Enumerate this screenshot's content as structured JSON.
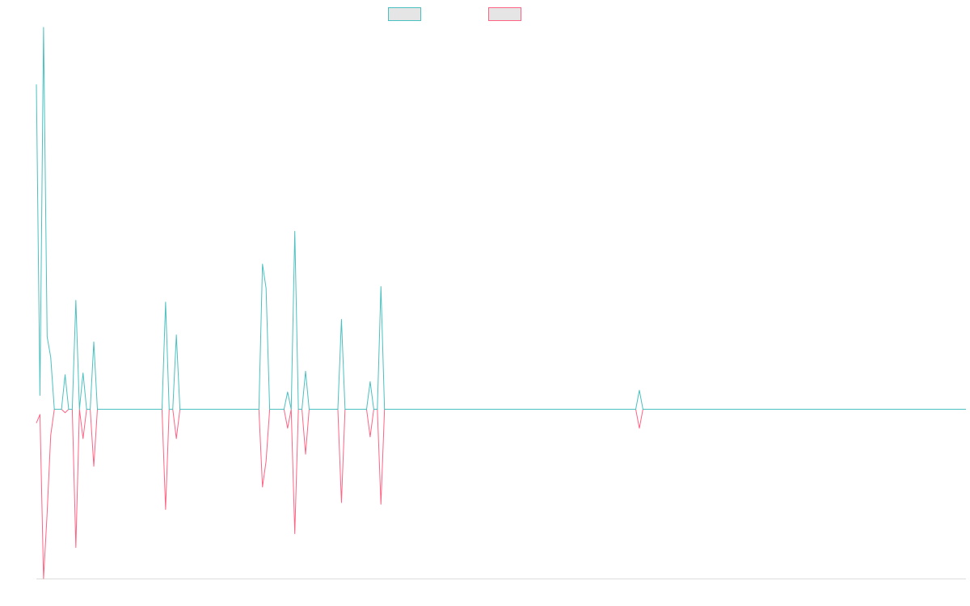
{
  "colors": {
    "series_a": "#4BC0C0",
    "series_b": "#FF6384",
    "legend_fill": "#E5E5E5",
    "axis": "#DDDDDD"
  },
  "chart_data": {
    "type": "line",
    "title": "",
    "xlabel": "",
    "ylabel": "",
    "legend_position": "top-center",
    "grid": false,
    "x_count": 260,
    "ylim": [
      -1,
      2.2
    ],
    "series": [
      {
        "key": "series_a",
        "color": "#4BC0C0",
        "values": [
          [
            0,
            1.88
          ],
          [
            1,
            0.08
          ],
          [
            2,
            2.21
          ],
          [
            3,
            0.42
          ],
          [
            4,
            0.3
          ],
          [
            5,
            0
          ],
          [
            6,
            0
          ],
          [
            7,
            0
          ],
          [
            8,
            0.2
          ],
          [
            9,
            0
          ],
          [
            10,
            0
          ],
          [
            11,
            0.63
          ],
          [
            12,
            0
          ],
          [
            13,
            0.21
          ],
          [
            14,
            0
          ],
          [
            15,
            0
          ],
          [
            16,
            0.39
          ],
          [
            17,
            0
          ],
          [
            35,
            0
          ],
          [
            36,
            0.62
          ],
          [
            37,
            0
          ],
          [
            38,
            0
          ],
          [
            39,
            0.43
          ],
          [
            40,
            0
          ],
          [
            62,
            0
          ],
          [
            63,
            0.84
          ],
          [
            64,
            0.7
          ],
          [
            65,
            0
          ],
          [
            69,
            0
          ],
          [
            70,
            0.1
          ],
          [
            71,
            0
          ],
          [
            72,
            1.03
          ],
          [
            73,
            0
          ],
          [
            74,
            0
          ],
          [
            75,
            0.22
          ],
          [
            76,
            0
          ],
          [
            84,
            0
          ],
          [
            85,
            0.52
          ],
          [
            86,
            0
          ],
          [
            92,
            0
          ],
          [
            93,
            0.16
          ],
          [
            94,
            0
          ],
          [
            95,
            0
          ],
          [
            96,
            0.71
          ],
          [
            97,
            0
          ],
          [
            167,
            0
          ],
          [
            168,
            0.11
          ],
          [
            169,
            0
          ],
          [
            259,
            0
          ]
        ]
      },
      {
        "key": "series_b",
        "color": "#FF6384",
        "values": [
          [
            0,
            -0.08
          ],
          [
            1,
            -0.03
          ],
          [
            2,
            -0.98
          ],
          [
            3,
            -0.6
          ],
          [
            4,
            -0.15
          ],
          [
            5,
            0
          ],
          [
            6,
            0
          ],
          [
            7,
            0
          ],
          [
            8,
            -0.02
          ],
          [
            9,
            0
          ],
          [
            10,
            0
          ],
          [
            11,
            -0.8
          ],
          [
            12,
            0
          ],
          [
            13,
            -0.17
          ],
          [
            14,
            0
          ],
          [
            15,
            0
          ],
          [
            16,
            -0.33
          ],
          [
            17,
            0
          ],
          [
            35,
            0
          ],
          [
            36,
            -0.58
          ],
          [
            37,
            0
          ],
          [
            38,
            0
          ],
          [
            39,
            -0.17
          ],
          [
            40,
            0
          ],
          [
            62,
            0
          ],
          [
            63,
            -0.45
          ],
          [
            64,
            -0.3
          ],
          [
            65,
            0
          ],
          [
            69,
            0
          ],
          [
            70,
            -0.11
          ],
          [
            71,
            0
          ],
          [
            72,
            -0.72
          ],
          [
            73,
            0
          ],
          [
            74,
            0
          ],
          [
            75,
            -0.26
          ],
          [
            76,
            0
          ],
          [
            84,
            0
          ],
          [
            85,
            -0.54
          ],
          [
            86,
            0
          ],
          [
            92,
            0
          ],
          [
            93,
            -0.16
          ],
          [
            94,
            0
          ],
          [
            95,
            0
          ],
          [
            96,
            -0.55
          ],
          [
            97,
            0
          ],
          [
            167,
            0
          ],
          [
            168,
            -0.11
          ],
          [
            169,
            0
          ],
          [
            259,
            0
          ]
        ]
      }
    ]
  }
}
